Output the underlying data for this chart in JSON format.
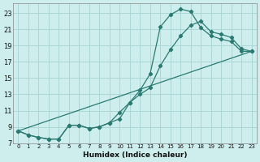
{
  "xlabel": "Humidex (Indice chaleur)",
  "background_color": "#ceeeed",
  "grid_color": "#aad8d6",
  "line_color": "#2a7a72",
  "xlim": [
    -0.5,
    23.5
  ],
  "ylim": [
    7,
    24.2
  ],
  "xticks": [
    0,
    1,
    2,
    3,
    4,
    5,
    6,
    7,
    8,
    9,
    10,
    11,
    12,
    13,
    14,
    15,
    16,
    17,
    18,
    19,
    20,
    21,
    22,
    23
  ],
  "yticks": [
    7,
    9,
    11,
    13,
    15,
    17,
    19,
    21,
    23
  ],
  "curve1_x": [
    0,
    1,
    2,
    3,
    4,
    5,
    6,
    7,
    8,
    9,
    10,
    11,
    12,
    13,
    14,
    15,
    16,
    17,
    18,
    19,
    20,
    21,
    22,
    23
  ],
  "curve1_y": [
    8.5,
    8.0,
    7.7,
    7.5,
    7.5,
    9.2,
    9.2,
    8.8,
    9.0,
    9.5,
    10.0,
    12.0,
    13.5,
    15.5,
    21.3,
    22.8,
    23.5,
    23.2,
    21.2,
    20.2,
    19.8,
    19.5,
    18.3,
    18.3
  ],
  "curve2_x": [
    0,
    1,
    2,
    3,
    4,
    5,
    6,
    7,
    8,
    9,
    10,
    11,
    12,
    13,
    14,
    15,
    16,
    17,
    18,
    19,
    20,
    21,
    22,
    23
  ],
  "curve2_y": [
    8.5,
    8.0,
    7.7,
    7.5,
    7.5,
    9.2,
    9.2,
    8.8,
    9.0,
    9.5,
    10.8,
    12.0,
    13.0,
    13.8,
    16.5,
    18.5,
    20.2,
    21.5,
    22.0,
    20.7,
    20.4,
    20.0,
    18.6,
    18.3
  ],
  "curve3_x": [
    0,
    23
  ],
  "curve3_y": [
    8.5,
    18.3
  ]
}
